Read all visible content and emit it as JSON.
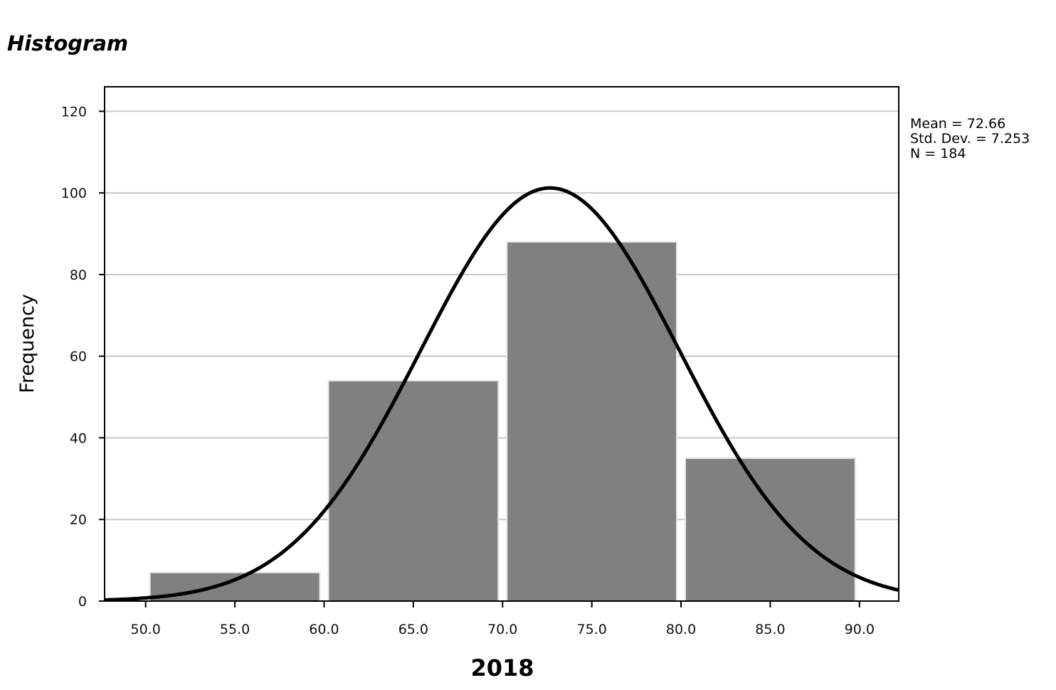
{
  "chart_data": {
    "type": "bar",
    "title": "Histogram",
    "xlabel": "2018",
    "ylabel": "Frequency",
    "bins": [
      {
        "start": 50,
        "end": 60,
        "count": 7
      },
      {
        "start": 60,
        "end": 70,
        "count": 54
      },
      {
        "start": 70,
        "end": 80,
        "count": 88
      },
      {
        "start": 80,
        "end": 90,
        "count": 35
      }
    ],
    "xlim": [
      47.7,
      92.2
    ],
    "ylim": [
      0,
      126
    ],
    "x_ticks": [
      "50.0",
      "55.0",
      "60.0",
      "65.0",
      "70.0",
      "75.0",
      "80.0",
      "85.0",
      "90.0"
    ],
    "y_ticks": [
      "0",
      "20",
      "40",
      "60",
      "80",
      "100",
      "120"
    ],
    "grid": true,
    "bar_color": "#808080",
    "normal_curve": {
      "mean": 72.66,
      "std_dev": 7.253,
      "n": 184,
      "bin_width": 10,
      "color": "#000000"
    },
    "stats": [
      "Mean = 72.66",
      "Std. Dev. = 7.253",
      "N = 184"
    ],
    "stats_placement": "top-right, outside plot"
  }
}
